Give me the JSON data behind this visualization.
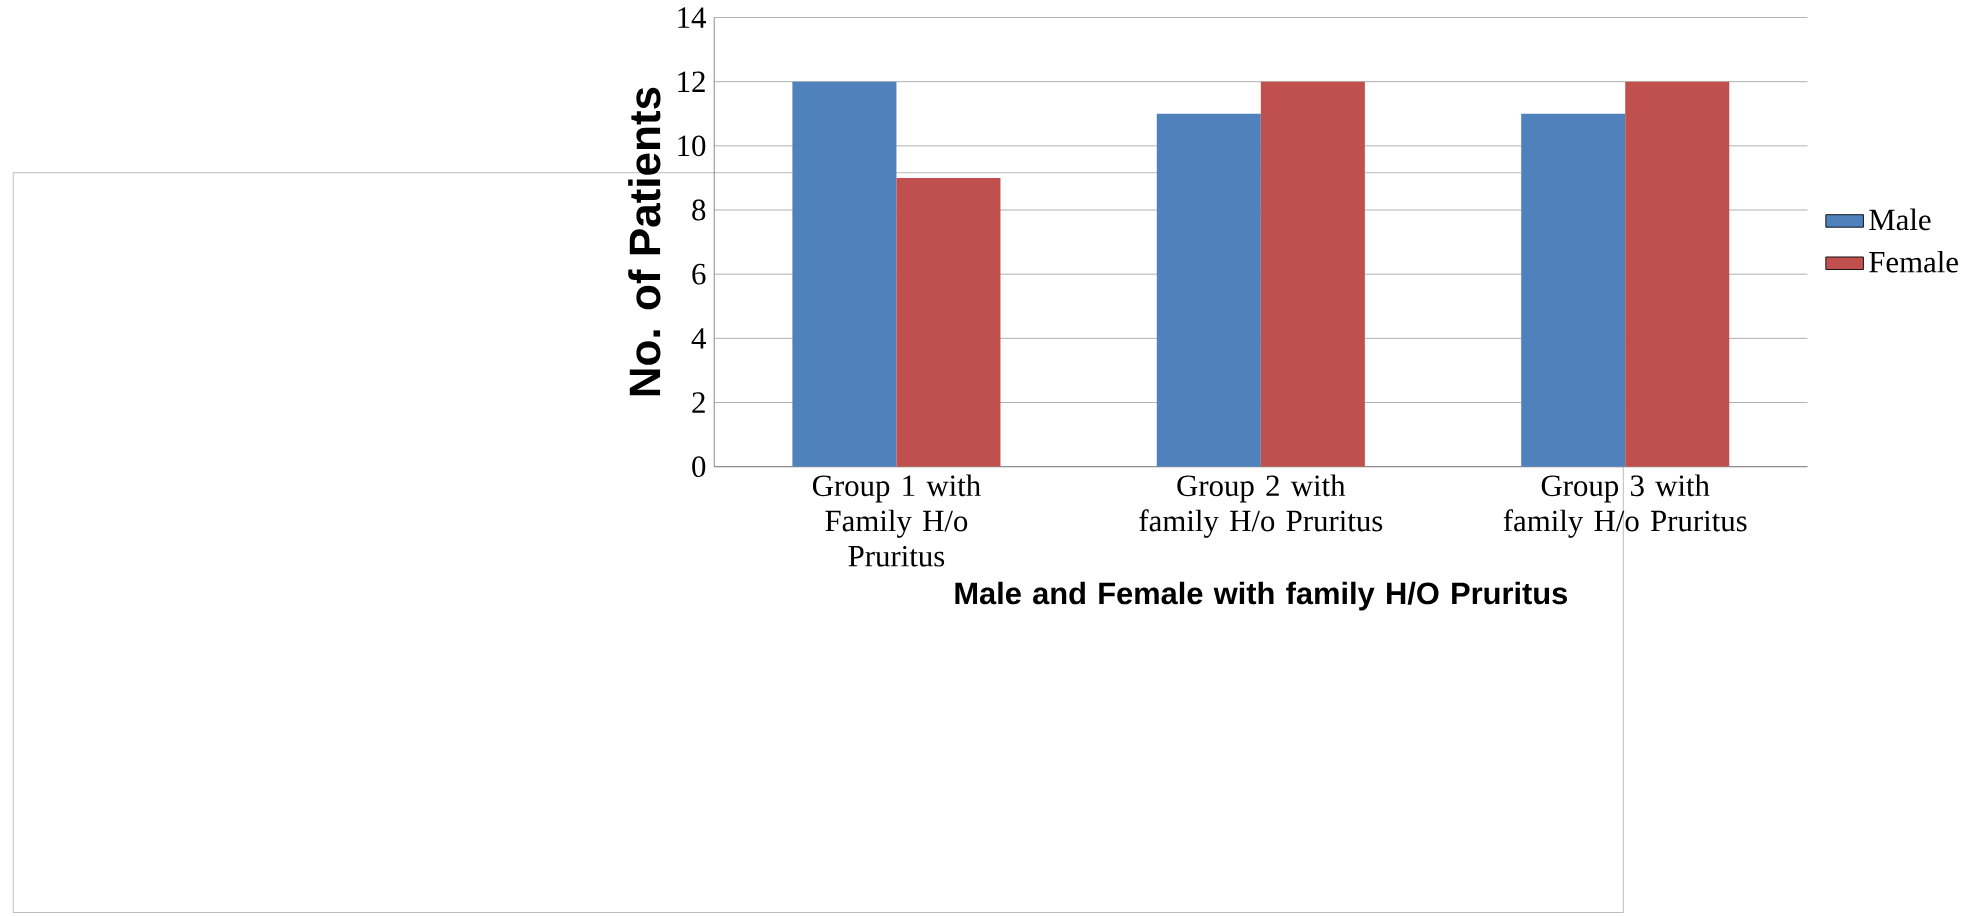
{
  "chart_data": {
    "type": "bar",
    "xlabel": "Male and Female with family H/O Pruritus",
    "ylabel": "No. of Patients",
    "categories": [
      "Group 1 with Family H/o Pruritus",
      "Group 2 with family H/o Pruritus",
      "Group 3 with family H/o Pruritus"
    ],
    "series": [
      {
        "name": "Male",
        "color": "#4f81bd",
        "values": [
          12,
          11,
          11
        ]
      },
      {
        "name": "Female",
        "color": "#c0504d",
        "values": [
          9,
          12,
          12
        ]
      }
    ],
    "ylim": [
      0,
      14
    ],
    "yticks": [
      0,
      2,
      4,
      6,
      8,
      10,
      12,
      14
    ],
    "grid": "y",
    "legend": "right"
  }
}
